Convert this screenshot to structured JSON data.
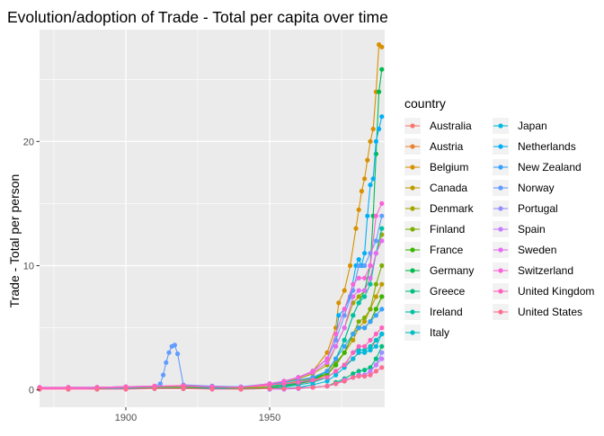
{
  "chart_data": {
    "type": "line",
    "title": "Evolution/adoption of Trade - Total per capita over time",
    "xlabel": "",
    "ylabel": "Trade - Total per person",
    "xlim": [
      1870,
      1990
    ],
    "ylim": [
      -1.4,
      29.0
    ],
    "x_ticks": [
      1900,
      1950
    ],
    "y_ticks": [
      0,
      10,
      20
    ],
    "grid": true,
    "legend_title": "country",
    "legend_position": "right",
    "series": [
      {
        "name": "Australia",
        "color": "#F8766D",
        "x": [
          1870,
          1880,
          1890,
          1900,
          1910,
          1920,
          1930,
          1940,
          1950,
          1955,
          1960,
          1965,
          1970,
          1973,
          1976,
          1979,
          1981,
          1983,
          1985,
          1987,
          1989
        ],
        "values": [
          0.15,
          0.15,
          0.15,
          0.15,
          0.2,
          0.2,
          0.15,
          0.15,
          0.3,
          0.4,
          0.5,
          0.7,
          1.0,
          1.5,
          2.0,
          2.5,
          3.0,
          3.0,
          3.2,
          4.0,
          4.5
        ]
      },
      {
        "name": "Austria",
        "color": "#EA8331",
        "x": [
          1920,
          1930,
          1940,
          1950,
          1955,
          1960,
          1965,
          1970,
          1973,
          1976,
          1979,
          1981,
          1983,
          1985,
          1987,
          1989
        ],
        "values": [
          0.1,
          0.1,
          0.1,
          0.15,
          0.3,
          0.5,
          0.8,
          1.2,
          2.0,
          3.0,
          4.5,
          5.0,
          5.0,
          5.5,
          6.5,
          7.5
        ]
      },
      {
        "name": "Belgium",
        "color": "#D89000",
        "x": [
          1870,
          1880,
          1890,
          1900,
          1910,
          1920,
          1930,
          1940,
          1950,
          1955,
          1960,
          1965,
          1970,
          1973,
          1974,
          1976,
          1978,
          1980,
          1981,
          1982,
          1983,
          1984,
          1985,
          1986,
          1987,
          1988,
          1989
        ],
        "values": [
          0.1,
          0.15,
          0.15,
          0.2,
          0.25,
          0.2,
          0.2,
          0.15,
          0.5,
          0.7,
          1.0,
          1.5,
          3.0,
          5.0,
          7.0,
          8.0,
          10.0,
          13.0,
          14.5,
          16.0,
          17.0,
          18.5,
          20.0,
          21.0,
          24.0,
          27.8,
          27.6
        ]
      },
      {
        "name": "Canada",
        "color": "#C09B00",
        "x": [
          1870,
          1880,
          1890,
          1900,
          1910,
          1920,
          1930,
          1940,
          1950,
          1955,
          1960,
          1965,
          1970,
          1973,
          1976,
          1979,
          1981,
          1983,
          1985,
          1987,
          1989
        ],
        "values": [
          0.1,
          0.1,
          0.1,
          0.15,
          0.25,
          0.3,
          0.2,
          0.2,
          0.4,
          0.5,
          0.7,
          1.0,
          1.5,
          2.2,
          3.0,
          4.0,
          5.0,
          5.5,
          6.5,
          7.5,
          8.5
        ]
      },
      {
        "name": "Denmark",
        "color": "#A3A500",
        "x": [
          1870,
          1880,
          1890,
          1900,
          1910,
          1920,
          1930,
          1940,
          1950,
          1955,
          1960,
          1965,
          1970,
          1973,
          1976,
          1979,
          1981,
          1983,
          1985,
          1987,
          1989
        ],
        "values": [
          0.1,
          0.1,
          0.15,
          0.2,
          0.25,
          0.3,
          0.2,
          0.15,
          0.4,
          0.6,
          0.9,
          1.3,
          2.0,
          3.5,
          5.0,
          7.0,
          7.5,
          8.0,
          9.0,
          11.0,
          12.5
        ]
      },
      {
        "name": "Finland",
        "color": "#7CAE00",
        "x": [
          1950,
          1955,
          1960,
          1965,
          1970,
          1973,
          1976,
          1979,
          1981,
          1983,
          1985,
          1987,
          1989
        ],
        "values": [
          0.3,
          0.4,
          0.6,
          0.9,
          1.3,
          2.0,
          3.0,
          4.5,
          5.5,
          5.8,
          6.5,
          8.5,
          10.0
        ]
      },
      {
        "name": "France",
        "color": "#39B600",
        "x": [
          1870,
          1880,
          1890,
          1900,
          1910,
          1920,
          1930,
          1940,
          1950,
          1955,
          1960,
          1965,
          1970,
          1973,
          1976,
          1979,
          1981,
          1983,
          1985,
          1987,
          1989
        ],
        "values": [
          0.1,
          0.1,
          0.1,
          0.15,
          0.2,
          0.2,
          0.15,
          0.1,
          0.2,
          0.3,
          0.5,
          0.8,
          1.3,
          2.0,
          3.0,
          4.5,
          5.0,
          5.0,
          5.5,
          6.5,
          7.5
        ]
      },
      {
        "name": "Germany",
        "color": "#00BB4E",
        "x": [
          1950,
          1955,
          1960,
          1965,
          1970,
          1973,
          1976,
          1979,
          1981,
          1983,
          1985,
          1986,
          1987,
          1988,
          1989
        ],
        "values": [
          0.2,
          0.3,
          0.5,
          0.8,
          1.5,
          2.5,
          4.0,
          6.0,
          7.0,
          8.0,
          10.0,
          14.0,
          19.0,
          24.0,
          25.8
        ]
      },
      {
        "name": "Greece",
        "color": "#00BF7D",
        "x": [
          1950,
          1955,
          1960,
          1965,
          1970,
          1973,
          1976,
          1979,
          1981,
          1983,
          1985,
          1987,
          1989
        ],
        "values": [
          0.1,
          0.1,
          0.15,
          0.2,
          0.3,
          0.6,
          0.9,
          1.3,
          1.5,
          1.6,
          1.8,
          2.5,
          3.5
        ]
      },
      {
        "name": "Ireland",
        "color": "#00C1A3",
        "x": [
          1950,
          1955,
          1960,
          1965,
          1970,
          1973,
          1976,
          1979,
          1981,
          1983,
          1985,
          1987,
          1989
        ],
        "values": [
          0.3,
          0.4,
          0.6,
          0.9,
          1.5,
          2.5,
          4.0,
          6.0,
          7.0,
          7.5,
          8.5,
          11.0,
          13.0
        ]
      },
      {
        "name": "Italy",
        "color": "#00BFC4",
        "x": [
          1870,
          1880,
          1890,
          1900,
          1910,
          1920,
          1930,
          1940,
          1950,
          1955,
          1960,
          1965,
          1970,
          1973,
          1976,
          1979,
          1981,
          1983,
          1985,
          1987,
          1989
        ],
        "values": [
          0.05,
          0.05,
          0.05,
          0.1,
          0.1,
          0.1,
          0.1,
          0.05,
          0.1,
          0.2,
          0.4,
          0.6,
          1.0,
          1.5,
          2.0,
          3.0,
          3.2,
          3.2,
          3.5,
          4.0,
          4.5
        ]
      },
      {
        "name": "Japan",
        "color": "#00BAE0",
        "x": [
          1950,
          1955,
          1960,
          1965,
          1970,
          1973,
          1976,
          1979,
          1981,
          1983,
          1985,
          1987,
          1989
        ],
        "values": [
          0.05,
          0.1,
          0.2,
          0.4,
          0.7,
          1.2,
          1.8,
          2.5,
          3.0,
          3.0,
          3.2,
          3.5,
          4.5
        ]
      },
      {
        "name": "Netherlands",
        "color": "#00B0F6",
        "x": [
          1870,
          1880,
          1890,
          1900,
          1910,
          1920,
          1930,
          1940,
          1950,
          1955,
          1960,
          1965,
          1970,
          1973,
          1974,
          1976,
          1978,
          1980,
          1981,
          1982,
          1983,
          1984,
          1985,
          1986,
          1987,
          1988,
          1989
        ],
        "values": [
          0.15,
          0.2,
          0.2,
          0.25,
          0.3,
          0.3,
          0.3,
          0.2,
          0.5,
          0.7,
          1.0,
          1.5,
          2.5,
          4.0,
          6.0,
          6.5,
          7.5,
          10.0,
          10.5,
          10.0,
          11.0,
          14.0,
          16.5,
          17.0,
          20.0,
          21.0,
          22.0
        ]
      },
      {
        "name": "New Zealand",
        "color": "#35A2FF",
        "x": [
          1870,
          1880,
          1890,
          1900,
          1910,
          1920,
          1930,
          1940,
          1950,
          1955,
          1960,
          1965,
          1970,
          1973,
          1976,
          1979,
          1981,
          1983,
          1985,
          1987,
          1989
        ],
        "values": [
          0.2,
          0.2,
          0.2,
          0.2,
          0.3,
          0.3,
          0.2,
          0.2,
          0.5,
          0.6,
          0.8,
          1.0,
          1.5,
          2.5,
          3.5,
          4.5,
          5.0,
          5.0,
          5.5,
          6.0,
          6.5
        ]
      },
      {
        "name": "Norway",
        "color": "#619CFF",
        "x": [
          1870,
          1880,
          1890,
          1900,
          1910,
          1912,
          1913,
          1914,
          1915,
          1916,
          1917,
          1918,
          1920,
          1930,
          1940,
          1950,
          1955,
          1960,
          1965,
          1970,
          1973,
          1976,
          1979,
          1981,
          1983,
          1985,
          1987,
          1989
        ],
        "values": [
          0.1,
          0.1,
          0.15,
          0.2,
          0.3,
          0.5,
          1.2,
          2.2,
          3.0,
          3.5,
          3.6,
          2.9,
          0.4,
          0.3,
          0.25,
          0.5,
          0.7,
          1.0,
          1.5,
          2.5,
          4.0,
          6.0,
          8.0,
          10.0,
          10.0,
          11.0,
          12.0,
          14.0
        ]
      },
      {
        "name": "Portugal",
        "color": "#9590FF",
        "x": [
          1950,
          1955,
          1960,
          1965,
          1970,
          1973,
          1976,
          1979,
          1981,
          1983,
          1985,
          1987,
          1989
        ],
        "values": [
          0.05,
          0.1,
          0.15,
          0.2,
          0.3,
          0.5,
          0.7,
          1.0,
          1.2,
          1.2,
          1.5,
          2.0,
          3.0
        ]
      },
      {
        "name": "Spain",
        "color": "#C77CFF",
        "x": [
          1950,
          1955,
          1960,
          1965,
          1970,
          1973,
          1976,
          1979,
          1981,
          1983,
          1985,
          1987,
          1989
        ],
        "values": [
          0.05,
          0.05,
          0.1,
          0.2,
          0.3,
          0.5,
          0.8,
          1.0,
          1.2,
          1.2,
          1.5,
          2.0,
          2.5
        ]
      },
      {
        "name": "Sweden",
        "color": "#E76BF3",
        "x": [
          1870,
          1880,
          1890,
          1900,
          1910,
          1920,
          1930,
          1940,
          1950,
          1955,
          1960,
          1965,
          1970,
          1973,
          1976,
          1979,
          1981,
          1983,
          1985,
          1987,
          1989
        ],
        "values": [
          0.1,
          0.1,
          0.15,
          0.2,
          0.25,
          0.3,
          0.25,
          0.2,
          0.5,
          0.7,
          1.0,
          1.4,
          2.2,
          3.5,
          5.0,
          7.5,
          8.0,
          8.0,
          9.0,
          11.0,
          12.0
        ]
      },
      {
        "name": "Switzerland",
        "color": "#FA62DB",
        "x": [
          1870,
          1880,
          1890,
          1900,
          1910,
          1920,
          1930,
          1940,
          1950,
          1955,
          1960,
          1965,
          1970,
          1973,
          1976,
          1979,
          1981,
          1983,
          1985,
          1987,
          1989
        ],
        "values": [
          0.15,
          0.15,
          0.2,
          0.25,
          0.3,
          0.3,
          0.25,
          0.2,
          0.5,
          0.7,
          1.0,
          1.5,
          2.5,
          4.5,
          6.5,
          8.5,
          9.0,
          9.0,
          10.0,
          14.0,
          15.0
        ]
      },
      {
        "name": "United Kingdom",
        "color": "#FF62BC",
        "x": [
          1870,
          1880,
          1890,
          1900,
          1910,
          1920,
          1930,
          1940,
          1950,
          1955,
          1960,
          1965,
          1970,
          1973,
          1976,
          1979,
          1981,
          1983,
          1985,
          1987,
          1989
        ],
        "values": [
          0.2,
          0.2,
          0.2,
          0.25,
          0.3,
          0.35,
          0.25,
          0.2,
          0.4,
          0.5,
          0.6,
          0.8,
          1.0,
          1.5,
          2.0,
          3.0,
          3.5,
          3.5,
          4.0,
          4.5,
          5.0
        ]
      },
      {
        "name": "United States",
        "color": "#FF6C91",
        "x": [
          1870,
          1880,
          1890,
          1900,
          1910,
          1920,
          1930,
          1940,
          1950,
          1955,
          1960,
          1965,
          1970,
          1973,
          1976,
          1979,
          1981,
          1983,
          1985,
          1987,
          1989
        ],
        "values": [
          0.05,
          0.05,
          0.05,
          0.05,
          0.1,
          0.1,
          0.05,
          0.05,
          0.1,
          0.1,
          0.15,
          0.2,
          0.3,
          0.5,
          0.7,
          1.0,
          1.1,
          1.1,
          1.2,
          1.5,
          1.8
        ]
      }
    ]
  }
}
